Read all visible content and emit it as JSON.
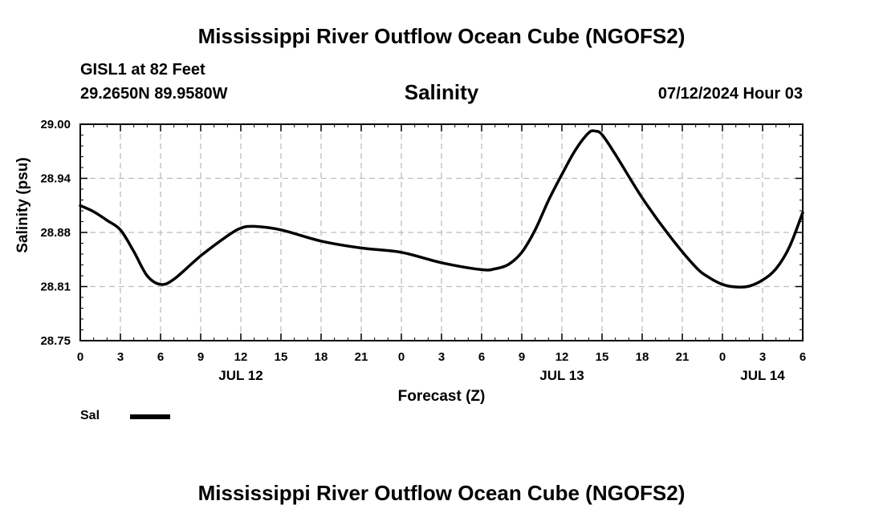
{
  "header": {
    "title": "Mississippi River Outflow Ocean Cube (NGOFS2)",
    "station": "GISL1 at 82 Feet",
    "coords": "29.2650N  89.9580W",
    "forecast_time": "07/12/2024 Hour 03",
    "footer_title": "Mississippi River Outflow Ocean Cube (NGOFS2)"
  },
  "legend": {
    "label": "Sal"
  },
  "chart_data": {
    "type": "line",
    "title": "Salinity",
    "xlabel": "Forecast (Z)",
    "ylabel": "Salinity (psu)",
    "xlim": [
      0,
      54
    ],
    "ylim": [
      28.75,
      29.0
    ],
    "yticks": [
      "28.75",
      "28.81",
      "28.88",
      "28.94",
      "29.00"
    ],
    "xticks": [
      "0",
      "3",
      "6",
      "9",
      "12",
      "15",
      "18",
      "21",
      "0",
      "3",
      "6",
      "9",
      "12",
      "15",
      "18",
      "21",
      "0",
      "3",
      "6"
    ],
    "day_labels": [
      {
        "label": "JUL 12",
        "hour": 12
      },
      {
        "label": "JUL 13",
        "hour": 36
      },
      {
        "label": "JUL 14",
        "hour": 51
      }
    ],
    "grid": true,
    "series": [
      {
        "name": "Sal",
        "x": [
          0,
          1,
          2,
          3,
          4,
          5,
          6,
          7,
          9,
          11,
          12,
          13,
          15,
          18,
          21,
          24,
          27,
          30,
          31,
          32,
          33,
          34,
          35,
          36,
          37,
          38,
          38.5,
          39,
          40,
          42,
          44,
          46,
          47,
          48,
          49,
          50,
          51,
          52,
          53,
          54
        ],
        "y": [
          28.906,
          28.899,
          28.889,
          28.878,
          28.853,
          28.825,
          28.815,
          28.821,
          28.848,
          28.871,
          28.88,
          28.882,
          28.878,
          28.865,
          28.857,
          28.852,
          28.84,
          28.832,
          28.833,
          28.838,
          28.852,
          28.878,
          28.912,
          28.942,
          28.97,
          28.99,
          28.992,
          28.988,
          28.965,
          28.915,
          28.872,
          28.835,
          28.823,
          28.815,
          28.812,
          28.813,
          28.82,
          28.833,
          28.858,
          28.898
        ]
      }
    ]
  }
}
